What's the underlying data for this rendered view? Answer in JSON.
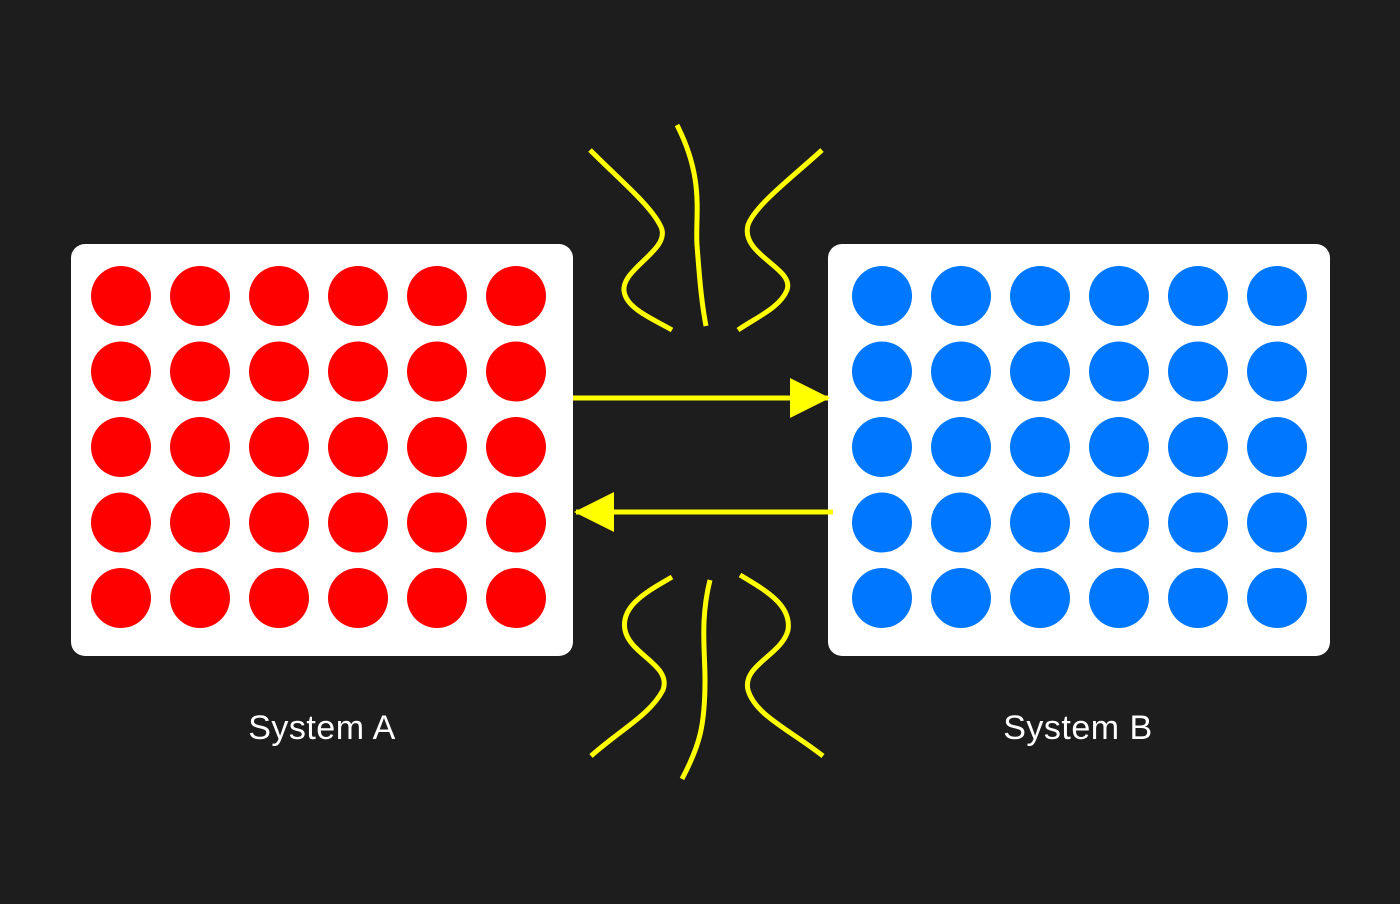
{
  "systems": {
    "a": {
      "label": "System A",
      "particle_color": "#ff0000",
      "rows": 5,
      "cols": 6
    },
    "b": {
      "label": "System B",
      "particle_color": "#0077ff",
      "rows": 5,
      "cols": 6
    }
  },
  "colors": {
    "background": "#1d1d1d",
    "panel": "#ffffff",
    "arrow": "#ffff00",
    "wave": "#ffff00"
  },
  "arrows": [
    {
      "from": "System A",
      "to": "System B"
    },
    {
      "from": "System B",
      "to": "System A"
    }
  ]
}
